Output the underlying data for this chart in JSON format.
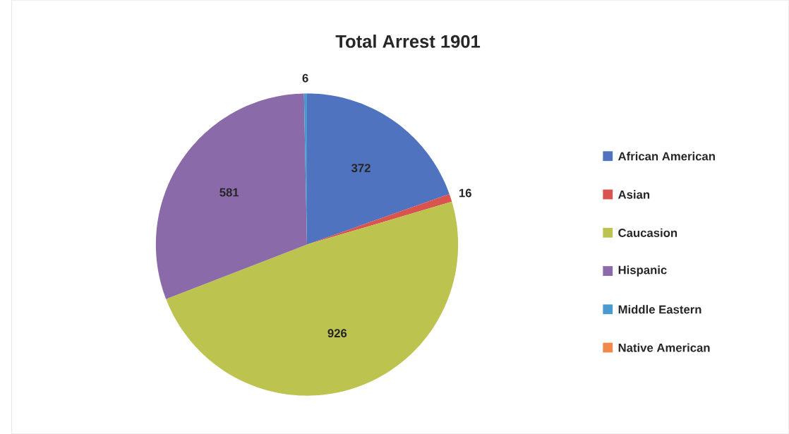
{
  "chart_data": {
    "type": "pie",
    "title": "Total Arrest 1901",
    "categories": [
      "African American",
      "Asian",
      "Caucasion",
      "Hispanic",
      "Middle Eastern",
      "Native American"
    ],
    "values": [
      372,
      16,
      926,
      581,
      6,
      0
    ],
    "value_labels": [
      "372",
      "16",
      "926",
      "581",
      "6",
      null
    ],
    "colors": [
      "#4f73be",
      "#d9534f",
      "#bcc34f",
      "#8a6aa8",
      "#4a9ad0",
      "#f0894a"
    ],
    "legend": "right"
  }
}
